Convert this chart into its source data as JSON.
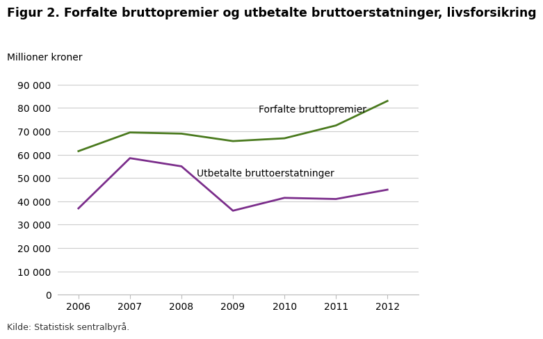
{
  "title": "Figur 2. Forfalte bruttopremier og utbetalte bruttoerstatninger, livsforsikring",
  "ylabel": "Millioner kroner",
  "footnote": "Kilde: Statistisk sentralbyrå.",
  "years": [
    2006,
    2007,
    2008,
    2009,
    2010,
    2011,
    2012
  ],
  "bruttopremier": [
    61500,
    69500,
    69000,
    65800,
    67000,
    72500,
    83000
  ],
  "bruttoerstatninger": [
    37000,
    58500,
    55000,
    36000,
    41500,
    41000,
    45000
  ],
  "line1_color": "#4a7a1e",
  "line2_color": "#7b2d8b",
  "line1_label": "Forfalte bruttopremier",
  "line2_label": "Utbetalte bruttoerstatninger",
  "ylim": [
    0,
    90000
  ],
  "yticks": [
    0,
    10000,
    20000,
    30000,
    40000,
    50000,
    60000,
    70000,
    80000,
    90000
  ],
  "background_color": "#ffffff",
  "grid_color": "#cccccc",
  "title_fontsize": 12.5,
  "label_fontsize": 10,
  "tick_fontsize": 10,
  "annotation_fontsize": 10,
  "footnote_fontsize": 9
}
